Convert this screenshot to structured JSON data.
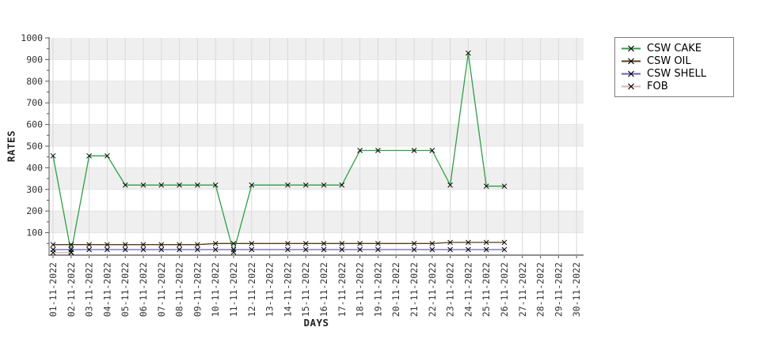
{
  "chart_data": {
    "type": "line",
    "title": "",
    "xlabel": "DAYS",
    "ylabel": "RATES",
    "ylim": [
      0,
      1000
    ],
    "y_major_tick": 100,
    "y_minor_tick": 50,
    "grid": true,
    "legend_position": "top-right",
    "marker": "x",
    "marker_color": "#000000",
    "band_colors": [
      "#efefef",
      "#ffffff"
    ],
    "grid_color": "#d9d9d9",
    "axis_color": "#666666",
    "tick_label_color": "#333333",
    "categories": [
      "01-11-2022",
      "02-11-2022",
      "03-11-2022",
      "04-11-2022",
      "05-11-2022",
      "06-11-2022",
      "07-11-2022",
      "08-11-2022",
      "09-11-2022",
      "10-11-2022",
      "11-11-2022",
      "12-11-2022",
      "13-11-2022",
      "14-11-2022",
      "15-11-2022",
      "16-11-2022",
      "17-11-2022",
      "18-11-2022",
      "19-11-2022",
      "20-11-2022",
      "21-11-2022",
      "22-11-2022",
      "23-11-2022",
      "24-11-2022",
      "25-11-2022",
      "26-11-2022",
      "27-11-2022",
      "28-11-2022",
      "29-11-2022",
      "30-11-2022"
    ],
    "series": [
      {
        "name": "CSW CAKE",
        "color": "#2f9e48",
        "values": [
          455,
          10,
          455,
          455,
          320,
          320,
          320,
          320,
          320,
          320,
          10,
          320,
          null,
          320,
          320,
          320,
          320,
          480,
          480,
          null,
          480,
          480,
          320,
          930,
          315,
          315,
          null,
          null,
          null,
          null
        ]
      },
      {
        "name": "CSW OIL",
        "color": "#5a3a16",
        "values": [
          45,
          45,
          45,
          45,
          45,
          45,
          45,
          45,
          45,
          50,
          50,
          50,
          null,
          50,
          50,
          50,
          50,
          50,
          50,
          null,
          50,
          50,
          55,
          55,
          55,
          55,
          null,
          null,
          null,
          null
        ]
      },
      {
        "name": "CSW SHELL",
        "color": "#6a5fb4",
        "values": [
          22,
          22,
          22,
          22,
          22,
          22,
          22,
          22,
          22,
          22,
          22,
          22,
          null,
          22,
          22,
          22,
          22,
          22,
          22,
          null,
          22,
          22,
          22,
          22,
          22,
          22,
          null,
          null,
          null,
          null
        ]
      },
      {
        "name": "FOB",
        "color": "#d9b5a7",
        "values": [
          8,
          8,
          null,
          null,
          null,
          null,
          null,
          null,
          null,
          null,
          null,
          null,
          null,
          null,
          null,
          null,
          null,
          null,
          null,
          null,
          null,
          null,
          null,
          null,
          null,
          null,
          null,
          null,
          null,
          null
        ]
      }
    ]
  }
}
